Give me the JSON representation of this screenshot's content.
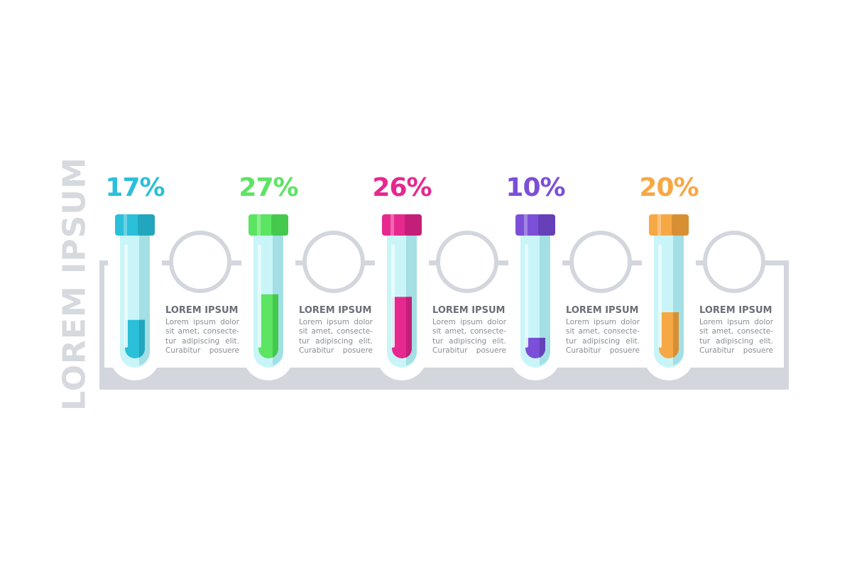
{
  "side_title": "LOREM IPSUM",
  "colors": {
    "frame": "#d3d7dd",
    "glass": "#c9f5f8",
    "glass_shade": "#a3dfe4"
  },
  "items": [
    {
      "percent": "17%",
      "value": 17,
      "color": "#2bbfd9",
      "dark": "#22a6bd",
      "title": "LOREM IPSUM",
      "body": "Lorem ipsum dolor sit amet, consecte-tur adipiscing elit. Curabitur posuere"
    },
    {
      "percent": "27%",
      "value": 27,
      "color": "#5ce463",
      "dark": "#45c94c",
      "title": "LOREM IPSUM",
      "body": "Lorem ipsum dolor sit amet, consecte-tur adipiscing elit. Curabitur posuere"
    },
    {
      "percent": "26%",
      "value": 26,
      "color": "#e6288f",
      "dark": "#c41f78",
      "title": "LOREM IPSUM",
      "body": "Lorem ipsum dolor sit amet, consecte-tur adipiscing elit. Curabitur posuere"
    },
    {
      "percent": "10%",
      "value": 10,
      "color": "#7c4fd8",
      "dark": "#6540b8",
      "title": "LOREM IPSUM",
      "body": "Lorem ipsum dolor sit amet, consecte-tur adipiscing elit. Curabitur posuere"
    },
    {
      "percent": "20%",
      "value": 20,
      "color": "#f6a845",
      "dark": "#d88f34",
      "title": "LOREM IPSUM",
      "body": "Lorem ipsum dolor sit amet, consecte-tur adipiscing elit. Curabitur posuere"
    }
  ]
}
